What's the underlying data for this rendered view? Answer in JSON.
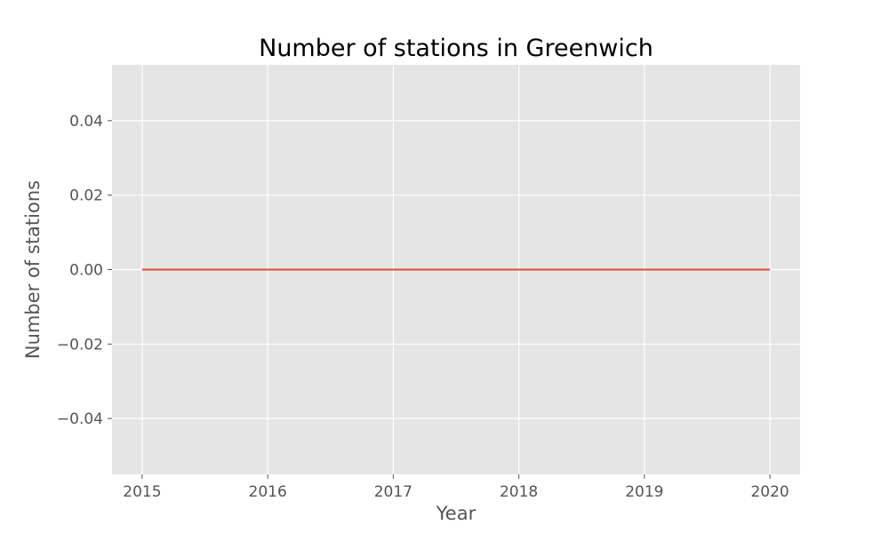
{
  "chart_data": {
    "type": "line",
    "title": "Number of stations in Greenwich",
    "xlabel": "Year",
    "ylabel": "Number of stations",
    "x": [
      2015,
      2016,
      2017,
      2018,
      2019,
      2020
    ],
    "series": [
      {
        "values": [
          0,
          0,
          0,
          0,
          0,
          0
        ],
        "color": "#E24A33"
      }
    ],
    "xlim": [
      2014.76,
      2020.24
    ],
    "ylim": [
      -0.055,
      0.055
    ],
    "xticks": [
      2015,
      2016,
      2017,
      2018,
      2019,
      2020
    ],
    "xtick_labels": [
      "2015",
      "2016",
      "2017",
      "2018",
      "2019",
      "2020"
    ],
    "yticks": [
      0.04,
      0.02,
      0.0,
      -0.02,
      -0.04
    ],
    "ytick_labels": [
      "0.04",
      "0.02",
      "0.00",
      "−0.02",
      "−0.04"
    ],
    "grid": true,
    "legend": "none",
    "colors": {
      "plot_background": "#E5E5E5",
      "grid": "#FFFFFF",
      "tick_text": "#555555"
    }
  }
}
